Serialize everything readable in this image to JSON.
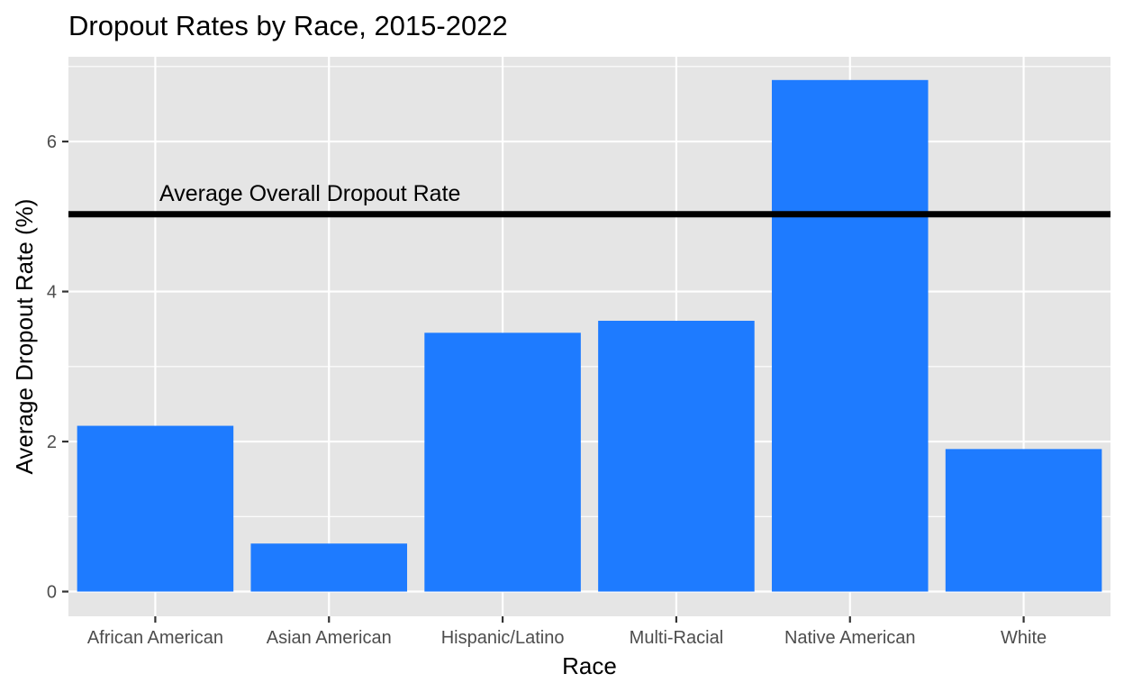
{
  "colors": {
    "panel_background": "#e5e5e5",
    "grid": "#ffffff",
    "bar_fill": "#1e7bff",
    "reference_line": "#000000",
    "tick_text": "#4d4d4d",
    "tick_mark": "#333333"
  },
  "chart_data": {
    "type": "bar",
    "title": "Dropout Rates by Race, 2015-2022",
    "xlabel": "Race",
    "ylabel": "Average Dropout Rate (%)",
    "categories": [
      "African American",
      "Asian American",
      "Hispanic/Latino",
      "Multi-Racial",
      "Native American",
      "White"
    ],
    "values": [
      2.21,
      0.64,
      3.45,
      3.61,
      6.82,
      1.9
    ],
    "ylim": [
      -0.33,
      7.13
    ],
    "y_ticks": [
      0,
      2,
      4,
      6
    ],
    "y_tick_labels": [
      "0",
      "2",
      "4",
      "6"
    ],
    "grid": true,
    "legend": "none",
    "reference_line": {
      "value": 5.03,
      "label": "Average Overall Dropout Rate"
    }
  }
}
